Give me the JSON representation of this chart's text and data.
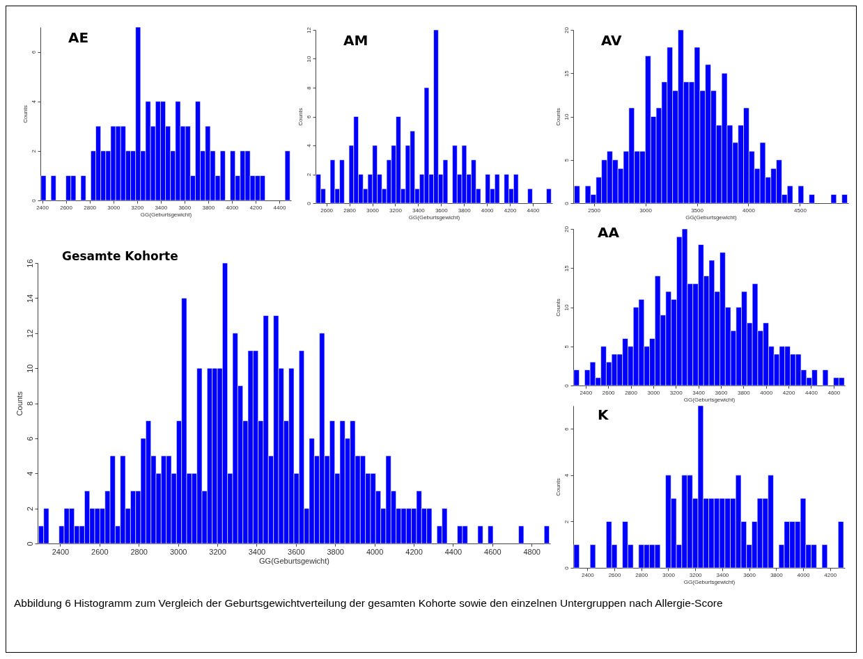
{
  "chart_data": [
    {
      "type": "histogram",
      "title": "AE",
      "xlabel": "GG(Geburtsgewicht)",
      "ylabel": "Counts",
      "color": "#0000ff",
      "xlim": [
        2385,
        4500
      ],
      "xticks": [
        2400,
        2600,
        2800,
        3000,
        3200,
        3400,
        3600,
        3800,
        4000,
        4200,
        4400
      ],
      "ylim": [
        0,
        7
      ],
      "yticks": [
        0,
        2,
        4,
        6
      ],
      "bins": [
        2390,
        2432,
        2474,
        2516,
        2558,
        2600,
        2642,
        2684,
        2726,
        2768,
        2810,
        2852,
        2894,
        2936,
        2978,
        3020,
        3062,
        3104,
        3146,
        3188,
        3230,
        3272,
        3314,
        3356,
        3398,
        3440,
        3482,
        3524,
        3566,
        3608,
        3650,
        3692,
        3734,
        3776,
        3818,
        3860,
        3902,
        3944,
        3986,
        4028,
        4070,
        4112,
        4154,
        4196,
        4238,
        4280,
        4322,
        4364,
        4406,
        4448,
        4490
      ],
      "values": [
        1,
        0,
        1,
        0,
        0,
        1,
        1,
        0,
        1,
        0,
        2,
        3,
        2,
        2,
        3,
        3,
        3,
        2,
        2,
        7,
        2,
        4,
        3,
        4,
        4,
        3,
        2,
        4,
        3,
        3,
        1,
        4,
        2,
        3,
        2,
        1,
        2,
        0,
        2,
        1,
        2,
        2,
        1,
        1,
        1,
        0,
        0,
        0,
        0,
        2
      ]
    },
    {
      "type": "histogram",
      "title": "AM",
      "xlabel": "GG(Geburtsgewicht)",
      "ylabel": "Counts",
      "color": "#0000ff",
      "xlim": [
        2505,
        4570
      ],
      "xticks": [
        2600,
        2800,
        3000,
        3200,
        3400,
        3600,
        3800,
        4000,
        4200,
        4400
      ],
      "ylim": [
        0,
        12
      ],
      "yticks": [
        0,
        2,
        4,
        6,
        8,
        10,
        12
      ],
      "bins": [
        2510,
        2551,
        2592,
        2633,
        2674,
        2715,
        2756,
        2797,
        2838,
        2879,
        2920,
        2961,
        3002,
        3043,
        3084,
        3125,
        3166,
        3207,
        3248,
        3289,
        3330,
        3371,
        3412,
        3453,
        3494,
        3535,
        3576,
        3617,
        3658,
        3699,
        3740,
        3781,
        3822,
        3863,
        3904,
        3945,
        3986,
        4027,
        4068,
        4109,
        4150,
        4191,
        4232,
        4273,
        4314,
        4355,
        4396,
        4437,
        4478,
        4519,
        4560
      ],
      "values": [
        2,
        1,
        0,
        3,
        1,
        3,
        0,
        4,
        6,
        2,
        1,
        2,
        4,
        2,
        1,
        3,
        4,
        6,
        1,
        4,
        5,
        1,
        2,
        8,
        2,
        12,
        2,
        3,
        0,
        4,
        2,
        4,
        2,
        3,
        1,
        0,
        2,
        1,
        2,
        0,
        2,
        1,
        2,
        0,
        0,
        1,
        0,
        0,
        0,
        1
      ]
    },
    {
      "type": "histogram",
      "title": "AV",
      "xlabel": "GG(Geburtsgewicht)",
      "ylabel": "Counts",
      "color": "#0000ff",
      "xlim": [
        2300,
        4970
      ],
      "xticks": [
        2500,
        3000,
        3500,
        4000,
        4500
      ],
      "ylim": [
        0,
        20
      ],
      "yticks": [
        0,
        5,
        10,
        15,
        20
      ],
      "bins": [
        2310,
        2363,
        2416,
        2469,
        2522,
        2575,
        2628,
        2681,
        2734,
        2787,
        2840,
        2893,
        2946,
        2999,
        3052,
        3105,
        3158,
        3211,
        3264,
        3317,
        3370,
        3423,
        3476,
        3529,
        3582,
        3635,
        3688,
        3741,
        3794,
        3847,
        3900,
        3953,
        4006,
        4059,
        4112,
        4165,
        4218,
        4271,
        4324,
        4377,
        4430,
        4483,
        4536,
        4589,
        4642,
        4695,
        4748,
        4801,
        4854,
        4907,
        4960
      ],
      "values": [
        2,
        0,
        2,
        1,
        3,
        5,
        6,
        5,
        4,
        6,
        11,
        6,
        6,
        17,
        10,
        11,
        14,
        18,
        13,
        20,
        14,
        14,
        18,
        13,
        16,
        13,
        9,
        15,
        9,
        7,
        9,
        11,
        6,
        4,
        7,
        3,
        4,
        5,
        1,
        2,
        0,
        2,
        0,
        1,
        0,
        0,
        0,
        1,
        0,
        1
      ]
    },
    {
      "type": "histogram",
      "title": "Gesamte Kohorte",
      "xlabel": "GG(Geburtsgewicht)",
      "ylabel": "Counts",
      "color": "#0000ff",
      "xlim": [
        2285,
        4895
      ],
      "xticks": [
        2400,
        2600,
        2800,
        3000,
        3200,
        3400,
        3600,
        3800,
        4000,
        4200,
        4400,
        4600,
        4800
      ],
      "ylim": [
        0,
        16
      ],
      "yticks": [
        0,
        2,
        4,
        6,
        8,
        10,
        12,
        14,
        16
      ],
      "bins": [
        2290,
        2316,
        2342,
        2368,
        2394,
        2420,
        2446,
        2472,
        2498,
        2524,
        2550,
        2576,
        2602,
        2628,
        2654,
        2680,
        2706,
        2732,
        2758,
        2784,
        2810,
        2836,
        2862,
        2888,
        2914,
        2940,
        2966,
        2992,
        3018,
        3044,
        3070,
        3096,
        3122,
        3148,
        3174,
        3200,
        3226,
        3252,
        3278,
        3304,
        3330,
        3356,
        3382,
        3408,
        3434,
        3460,
        3486,
        3512,
        3538,
        3564,
        3590,
        3616,
        3642,
        3668,
        3694,
        3720,
        3746,
        3772,
        3798,
        3824,
        3850,
        3876,
        3902,
        3928,
        3954,
        3980,
        4006,
        4032,
        4058,
        4084,
        4110,
        4136,
        4162,
        4188,
        4214,
        4240,
        4266,
        4292,
        4318,
        4344,
        4370,
        4396,
        4422,
        4448,
        4474,
        4500,
        4526,
        4552,
        4578,
        4604,
        4630,
        4656,
        4682,
        4708,
        4734,
        4760,
        4786,
        4812,
        4838,
        4864,
        4890
      ],
      "values": [
        1,
        2,
        0,
        0,
        1,
        2,
        2,
        1,
        1,
        3,
        2,
        2,
        2,
        3,
        5,
        1,
        5,
        2,
        3,
        3,
        6,
        7,
        5,
        4,
        5,
        5,
        4,
        7,
        14,
        4,
        4,
        10,
        3,
        10,
        10,
        10,
        16,
        4,
        12,
        9,
        7,
        11,
        11,
        7,
        13,
        5,
        13,
        10,
        7,
        10,
        4,
        11,
        2,
        6,
        5,
        12,
        5,
        7,
        4,
        7,
        6,
        7,
        5,
        5,
        4,
        4,
        3,
        2,
        5,
        3,
        2,
        2,
        2,
        2,
        3,
        2,
        2,
        0,
        1,
        2,
        0,
        0,
        1,
        1,
        0,
        0,
        1,
        0,
        1,
        0,
        0,
        0,
        0,
        0,
        1,
        0,
        0,
        0,
        0,
        1
      ],
      "annotations": [
        "Abbildung 6 Histogramm zum Vergleich der Geburtsgewichtverteilung der gesamten Kohorte sowie den einzelnen Untergruppen nach Allergie-Score"
      ]
    },
    {
      "type": "histogram",
      "title": "AA",
      "xlabel": "GG(Geburtsgewicht)",
      "ylabel": "Counts",
      "color": "#0000ff",
      "xlim": [
        2290,
        4700
      ],
      "xticks": [
        2400,
        2600,
        2800,
        3000,
        3200,
        3400,
        3600,
        3800,
        4000,
        4200,
        4400,
        4600
      ],
      "ylim": [
        0,
        20
      ],
      "yticks": [
        0,
        5,
        10,
        15,
        20
      ],
      "bins": [
        2295,
        2343,
        2391,
        2439,
        2487,
        2535,
        2583,
        2631,
        2679,
        2727,
        2775,
        2823,
        2871,
        2919,
        2967,
        3015,
        3063,
        3111,
        3159,
        3207,
        3255,
        3303,
        3351,
        3399,
        3447,
        3495,
        3543,
        3591,
        3639,
        3687,
        3735,
        3783,
        3831,
        3879,
        3927,
        3975,
        4023,
        4071,
        4119,
        4167,
        4215,
        4263,
        4311,
        4359,
        4407,
        4455,
        4503,
        4551,
        4599,
        4647,
        4695
      ],
      "values": [
        2,
        0,
        2,
        3,
        1,
        5,
        3,
        4,
        4,
        6,
        5,
        10,
        11,
        5,
        6,
        14,
        9,
        12,
        11,
        19,
        20,
        13,
        13,
        18,
        14,
        16,
        12,
        17,
        10,
        7,
        10,
        12,
        8,
        13,
        7,
        8,
        5,
        4,
        5,
        5,
        4,
        4,
        2,
        1,
        2,
        0,
        2,
        0,
        1,
        1
      ]
    },
    {
      "type": "histogram",
      "title": "K",
      "xlabel": "GG(Geburtsgewicht)",
      "ylabel": "Counts",
      "color": "#0000ff",
      "xlim": [
        2295,
        4310
      ],
      "xticks": [
        2400,
        2600,
        2800,
        3000,
        3200,
        3400,
        3600,
        3800,
        4000,
        4200
      ],
      "ylim": [
        0,
        7
      ],
      "yticks": [
        0,
        2,
        4,
        6
      ],
      "bins": [
        2300,
        2340,
        2380,
        2420,
        2460,
        2500,
        2540,
        2580,
        2620,
        2660,
        2700,
        2740,
        2780,
        2820,
        2860,
        2900,
        2940,
        2980,
        3020,
        3060,
        3100,
        3140,
        3180,
        3220,
        3260,
        3300,
        3340,
        3380,
        3420,
        3460,
        3500,
        3540,
        3580,
        3620,
        3660,
        3700,
        3740,
        3780,
        3820,
        3860,
        3900,
        3940,
        3980,
        4020,
        4060,
        4100,
        4140,
        4180,
        4220,
        4260,
        4300
      ],
      "values": [
        1,
        0,
        0,
        1,
        0,
        0,
        2,
        1,
        0,
        2,
        1,
        0,
        1,
        1,
        1,
        1,
        0,
        4,
        3,
        1,
        4,
        4,
        3,
        7,
        3,
        3,
        3,
        3,
        3,
        3,
        4,
        2,
        1,
        2,
        3,
        3,
        4,
        0,
        1,
        2,
        2,
        2,
        3,
        1,
        1,
        0,
        1,
        0,
        0,
        2
      ]
    }
  ]
}
